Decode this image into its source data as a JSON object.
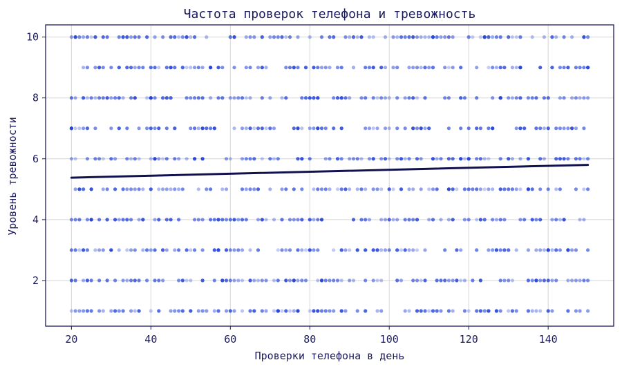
{
  "chart_data": {
    "type": "scatter",
    "title": "Частота проверок телефона и тревожность",
    "xlabel": "Проверки телефона в день",
    "ylabel": "Уровень тревожности",
    "xlim": [
      13.5,
      156.5
    ],
    "ylim": [
      0.5,
      10.4
    ],
    "xticks": [
      20,
      40,
      60,
      80,
      100,
      120,
      140
    ],
    "yticks": [
      2,
      4,
      6,
      8,
      10
    ],
    "grid": true,
    "x_range_points": [
      20,
      150
    ],
    "y_levels": [
      1,
      2,
      3,
      4,
      5,
      6,
      7,
      8,
      9,
      10
    ],
    "points_per_level": 150,
    "trend_line": {
      "x": [
        20,
        150
      ],
      "y": [
        5.38,
        5.8
      ]
    },
    "colors": {
      "point": "#1f3fd8",
      "trend": "#11114f",
      "axis": "#1b1b5e",
      "grid": "#d6d6d6"
    }
  }
}
